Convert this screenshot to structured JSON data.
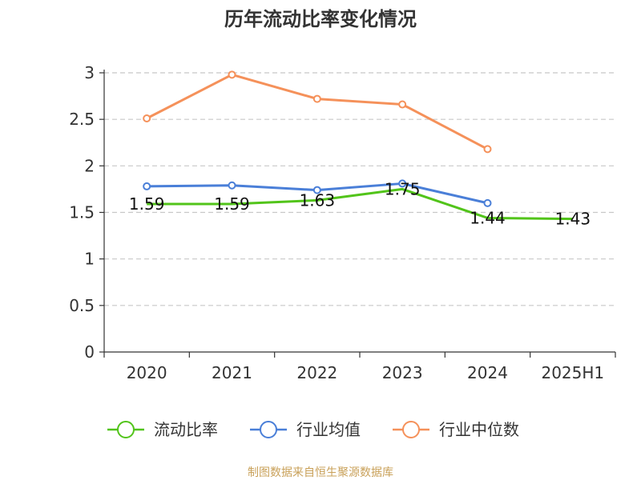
{
  "chart_data": {
    "type": "line",
    "title": "历年流动比率变化情况",
    "categories": [
      "2020",
      "2021",
      "2022",
      "2023",
      "2024",
      "2025H1"
    ],
    "ylim": [
      0,
      3
    ],
    "yticks": [
      "0",
      "0.5",
      "1",
      "1.5",
      "2",
      "2.5",
      "3"
    ],
    "ytick_values": [
      0,
      0.5,
      1,
      1.5,
      2,
      2.5,
      3
    ],
    "grid": true,
    "legend_position": "bottom",
    "series": [
      {
        "name": "流动比率",
        "color": "#52c41a",
        "values": [
          1.59,
          1.59,
          1.63,
          1.75,
          1.44,
          1.43
        ],
        "labels": [
          "1.59",
          "1.59",
          "1.63",
          "1.75",
          "1.44",
          "1.43"
        ],
        "markers": false,
        "width": 3
      },
      {
        "name": "行业均值",
        "color": "#4a7fd8",
        "values": [
          1.78,
          1.79,
          1.74,
          1.81,
          1.6,
          null
        ],
        "markers": true,
        "width": 3
      },
      {
        "name": "行业中位数",
        "color": "#f5915a",
        "values": [
          2.51,
          2.98,
          2.72,
          2.66,
          2.18,
          null
        ],
        "markers": true,
        "width": 3
      }
    ]
  },
  "source_text": "制图数据来自恒生聚源数据库"
}
